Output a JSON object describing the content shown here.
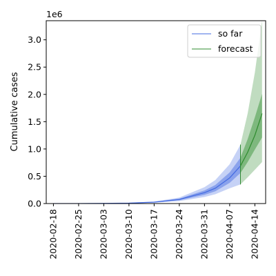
{
  "chart_data": {
    "type": "area",
    "ylabel": "Cumulative cases",
    "y_offset_label": "1e6",
    "x_tick_labels": [
      "2020-02-18",
      "2020-02-25",
      "2020-03-03",
      "2020-03-10",
      "2020-03-17",
      "2020-03-24",
      "2020-03-31",
      "2020-04-07",
      "2020-04-14"
    ],
    "x_start": "2020-02-18",
    "y_ticks": [
      "0.0",
      "0.5",
      "1.0",
      "1.5",
      "2.0",
      "2.5",
      "3.0"
    ],
    "ylim": [
      0,
      3350000
    ],
    "xlim": [
      "2020-02-16",
      "2020-04-17"
    ],
    "legend_position": "top-right",
    "series": [
      {
        "name": "so far",
        "color": "#4169e1",
        "x": [
          "2020-02-18",
          "2020-02-25",
          "2020-03-03",
          "2020-03-10",
          "2020-03-17",
          "2020-03-24",
          "2020-03-31",
          "2020-04-03",
          "2020-04-07",
          "2020-04-10"
        ],
        "median": [
          0,
          1000,
          3000,
          8000,
          25000,
          75000,
          200000,
          280000,
          470000,
          690000
        ],
        "band_inner": {
          "lower": [
            0,
            800,
            2500,
            6500,
            20000,
            60000,
            160000,
            225000,
            380000,
            560000
          ],
          "upper": [
            0,
            1200,
            3600,
            9500,
            30000,
            90000,
            240000,
            340000,
            570000,
            840000
          ]
        },
        "band_outer": {
          "lower": [
            0,
            600,
            2000,
            5000,
            15000,
            45000,
            120000,
            170000,
            280000,
            350000
          ],
          "upper": [
            0,
            1400,
            4200,
            11000,
            36000,
            110000,
            300000,
            430000,
            720000,
            1080000
          ]
        }
      },
      {
        "name": "forecast",
        "color": "#2e8b2e",
        "x": [
          "2020-04-10",
          "2020-04-12",
          "2020-04-14",
          "2020-04-16"
        ],
        "median": [
          690000,
          940000,
          1250000,
          1650000
        ],
        "band_inner": {
          "lower": [
            560000,
            760000,
            990000,
            1210000
          ],
          "upper": [
            840000,
            1180000,
            1580000,
            2010000
          ]
        },
        "band_outer": {
          "lower": [
            350000,
            480000,
            620000,
            760000
          ],
          "upper": [
            1080000,
            1650000,
            2400000,
            3350000
          ]
        }
      }
    ]
  }
}
